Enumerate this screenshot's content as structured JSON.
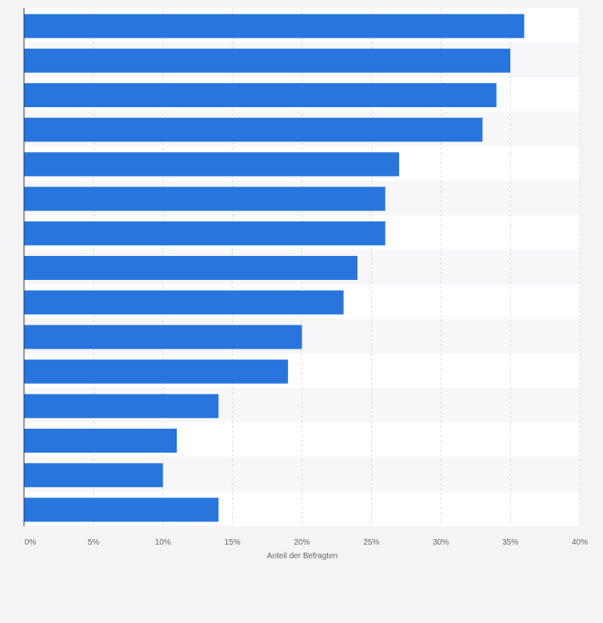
{
  "chart_data": {
    "type": "bar",
    "orientation": "horizontal",
    "categories": [
      "",
      "",
      "",
      "",
      "",
      "",
      "",
      "",
      "",
      "",
      "",
      "",
      "",
      "",
      ""
    ],
    "values": [
      36,
      35,
      34,
      33,
      27,
      26,
      26,
      24,
      23,
      20,
      19,
      14,
      11,
      10,
      14
    ],
    "xlabel": "Anteil der Befragten",
    "x_ticks": [
      "0%",
      "5%",
      "10%",
      "15%",
      "20%",
      "25%",
      "30%",
      "35%",
      "40%"
    ],
    "xlim": [
      0,
      40
    ],
    "grid": true,
    "bar_color": "#2876dd"
  }
}
